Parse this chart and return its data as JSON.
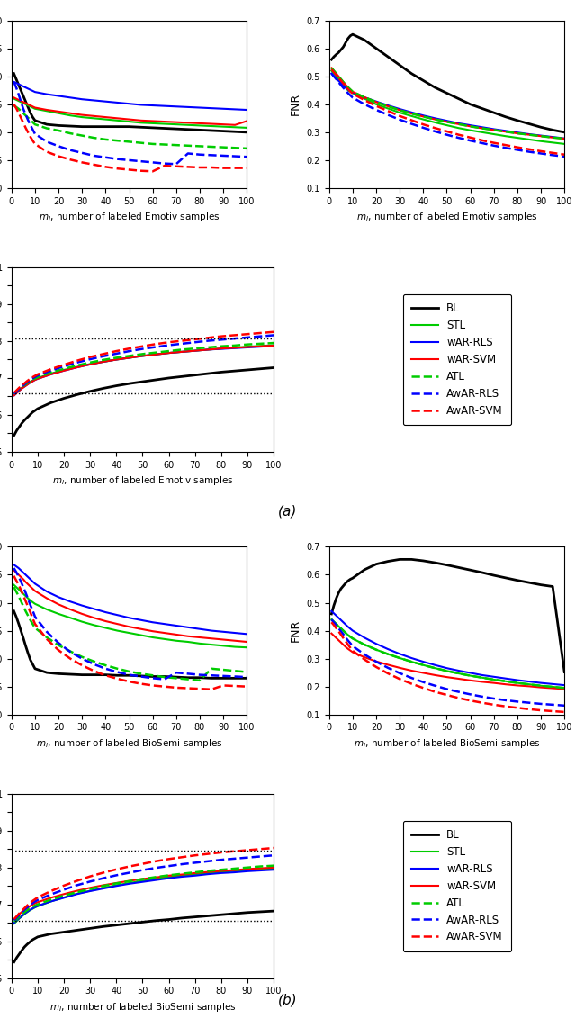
{
  "x": [
    1,
    2,
    3,
    4,
    5,
    6,
    7,
    8,
    9,
    10,
    15,
    20,
    25,
    30,
    35,
    40,
    45,
    50,
    55,
    60,
    65,
    70,
    75,
    80,
    85,
    90,
    95,
    100
  ],
  "a_fpr": {
    "BL": [
      0.205,
      0.195,
      0.185,
      0.175,
      0.165,
      0.155,
      0.145,
      0.135,
      0.127,
      0.121,
      0.114,
      0.112,
      0.111,
      0.11,
      0.11,
      0.11,
      0.11,
      0.11,
      0.109,
      0.108,
      0.107,
      0.106,
      0.105,
      0.104,
      0.103,
      0.102,
      0.101,
      0.1
    ],
    "STL": [
      0.16,
      0.158,
      0.156,
      0.154,
      0.152,
      0.15,
      0.148,
      0.146,
      0.144,
      0.142,
      0.138,
      0.134,
      0.13,
      0.127,
      0.125,
      0.123,
      0.121,
      0.119,
      0.117,
      0.116,
      0.115,
      0.114,
      0.113,
      0.112,
      0.111,
      0.11,
      0.109,
      0.108
    ],
    "wAR_RLS": [
      0.19,
      0.188,
      0.186,
      0.184,
      0.182,
      0.18,
      0.178,
      0.176,
      0.174,
      0.172,
      0.168,
      0.165,
      0.162,
      0.159,
      0.157,
      0.155,
      0.153,
      0.151,
      0.149,
      0.148,
      0.147,
      0.146,
      0.145,
      0.144,
      0.143,
      0.142,
      0.141,
      0.14
    ],
    "wAR_SVM": [
      0.162,
      0.16,
      0.158,
      0.156,
      0.154,
      0.152,
      0.15,
      0.148,
      0.146,
      0.144,
      0.14,
      0.137,
      0.134,
      0.131,
      0.129,
      0.127,
      0.125,
      0.123,
      0.121,
      0.12,
      0.119,
      0.118,
      0.117,
      0.116,
      0.115,
      0.114,
      0.113,
      0.12
    ],
    "ATL": [
      0.148,
      0.145,
      0.142,
      0.138,
      0.134,
      0.13,
      0.126,
      0.122,
      0.118,
      0.114,
      0.107,
      0.103,
      0.098,
      0.094,
      0.09,
      0.087,
      0.085,
      0.083,
      0.081,
      0.079,
      0.078,
      0.077,
      0.076,
      0.075,
      0.074,
      0.073,
      0.072,
      0.071
    ],
    "AwAR_RLS": [
      0.19,
      0.18,
      0.168,
      0.155,
      0.142,
      0.132,
      0.122,
      0.113,
      0.105,
      0.097,
      0.083,
      0.075,
      0.068,
      0.063,
      0.058,
      0.055,
      0.052,
      0.05,
      0.048,
      0.046,
      0.044,
      0.043,
      0.062,
      0.06,
      0.059,
      0.058,
      0.057,
      0.056
    ],
    "AwAR_SVM": [
      0.15,
      0.143,
      0.135,
      0.126,
      0.117,
      0.108,
      0.1,
      0.092,
      0.085,
      0.079,
      0.065,
      0.057,
      0.051,
      0.046,
      0.042,
      0.038,
      0.035,
      0.033,
      0.031,
      0.03,
      0.04,
      0.039,
      0.038,
      0.037,
      0.037,
      0.036,
      0.036,
      0.036
    ]
  },
  "a_fnr": {
    "BL": [
      0.56,
      0.57,
      0.578,
      0.585,
      0.595,
      0.605,
      0.62,
      0.635,
      0.645,
      0.65,
      0.63,
      0.6,
      0.57,
      0.54,
      0.51,
      0.485,
      0.46,
      0.44,
      0.42,
      0.4,
      0.385,
      0.37,
      0.355,
      0.342,
      0.33,
      0.318,
      0.308,
      0.3
    ],
    "STL": [
      0.52,
      0.51,
      0.5,
      0.49,
      0.48,
      0.47,
      0.46,
      0.45,
      0.445,
      0.44,
      0.42,
      0.4,
      0.385,
      0.37,
      0.358,
      0.346,
      0.335,
      0.325,
      0.315,
      0.307,
      0.3,
      0.293,
      0.286,
      0.28,
      0.274,
      0.268,
      0.263,
      0.258
    ],
    "wAR_RLS": [
      0.51,
      0.5,
      0.492,
      0.484,
      0.476,
      0.468,
      0.46,
      0.453,
      0.447,
      0.442,
      0.425,
      0.41,
      0.396,
      0.383,
      0.371,
      0.36,
      0.35,
      0.341,
      0.332,
      0.325,
      0.318,
      0.311,
      0.305,
      0.299,
      0.293,
      0.288,
      0.283,
      0.278
    ],
    "wAR_SVM": [
      0.53,
      0.52,
      0.51,
      0.5,
      0.49,
      0.48,
      0.47,
      0.461,
      0.453,
      0.445,
      0.425,
      0.408,
      0.393,
      0.379,
      0.367,
      0.356,
      0.346,
      0.337,
      0.329,
      0.321,
      0.314,
      0.308,
      0.302,
      0.296,
      0.291,
      0.286,
      0.281,
      0.277
    ],
    "ATL": [
      0.53,
      0.52,
      0.51,
      0.5,
      0.49,
      0.48,
      0.47,
      0.461,
      0.453,
      0.445,
      0.425,
      0.408,
      0.393,
      0.379,
      0.367,
      0.356,
      0.346,
      0.337,
      0.329,
      0.321,
      0.314,
      0.308,
      0.302,
      0.296,
      0.291,
      0.286,
      0.281,
      0.277
    ],
    "AwAR_RLS": [
      0.51,
      0.5,
      0.49,
      0.479,
      0.469,
      0.459,
      0.45,
      0.44,
      0.432,
      0.424,
      0.4,
      0.38,
      0.362,
      0.345,
      0.33,
      0.316,
      0.303,
      0.291,
      0.28,
      0.27,
      0.261,
      0.252,
      0.244,
      0.237,
      0.23,
      0.224,
      0.218,
      0.213
    ],
    "AwAR_SVM": [
      0.525,
      0.515,
      0.505,
      0.495,
      0.485,
      0.475,
      0.465,
      0.455,
      0.446,
      0.438,
      0.415,
      0.394,
      0.376,
      0.358,
      0.343,
      0.328,
      0.315,
      0.303,
      0.291,
      0.281,
      0.271,
      0.262,
      0.254,
      0.246,
      0.239,
      0.232,
      0.226,
      0.22
    ]
  },
  "a_bca": {
    "BL": [
      0.545,
      0.558,
      0.568,
      0.578,
      0.586,
      0.593,
      0.6,
      0.607,
      0.612,
      0.617,
      0.633,
      0.645,
      0.655,
      0.664,
      0.672,
      0.679,
      0.685,
      0.69,
      0.695,
      0.7,
      0.704,
      0.708,
      0.712,
      0.716,
      0.719,
      0.722,
      0.725,
      0.728
    ],
    "STL": [
      0.655,
      0.662,
      0.668,
      0.674,
      0.679,
      0.684,
      0.689,
      0.693,
      0.697,
      0.7,
      0.712,
      0.722,
      0.73,
      0.738,
      0.744,
      0.75,
      0.755,
      0.76,
      0.764,
      0.768,
      0.771,
      0.774,
      0.777,
      0.78,
      0.782,
      0.785,
      0.787,
      0.789
    ],
    "wAR_RLS": [
      0.653,
      0.66,
      0.666,
      0.672,
      0.677,
      0.682,
      0.687,
      0.691,
      0.695,
      0.698,
      0.71,
      0.72,
      0.729,
      0.737,
      0.744,
      0.75,
      0.755,
      0.76,
      0.764,
      0.768,
      0.771,
      0.774,
      0.777,
      0.779,
      0.781,
      0.783,
      0.785,
      0.787
    ],
    "wAR_SVM": [
      0.653,
      0.66,
      0.666,
      0.672,
      0.677,
      0.682,
      0.687,
      0.691,
      0.695,
      0.698,
      0.71,
      0.72,
      0.729,
      0.737,
      0.744,
      0.75,
      0.755,
      0.76,
      0.764,
      0.768,
      0.771,
      0.774,
      0.777,
      0.78,
      0.782,
      0.784,
      0.786,
      0.788
    ],
    "ATL": [
      0.657,
      0.664,
      0.67,
      0.676,
      0.681,
      0.686,
      0.691,
      0.695,
      0.699,
      0.702,
      0.715,
      0.725,
      0.734,
      0.742,
      0.749,
      0.755,
      0.76,
      0.765,
      0.769,
      0.773,
      0.777,
      0.78,
      0.783,
      0.786,
      0.788,
      0.791,
      0.793,
      0.795
    ],
    "AwAR_RLS": [
      0.657,
      0.664,
      0.671,
      0.677,
      0.683,
      0.689,
      0.694,
      0.699,
      0.703,
      0.707,
      0.72,
      0.732,
      0.742,
      0.751,
      0.759,
      0.766,
      0.773,
      0.779,
      0.784,
      0.789,
      0.793,
      0.797,
      0.801,
      0.804,
      0.807,
      0.81,
      0.813,
      0.816
    ],
    "AwAR_SVM": [
      0.66,
      0.667,
      0.674,
      0.68,
      0.686,
      0.692,
      0.697,
      0.702,
      0.706,
      0.71,
      0.724,
      0.736,
      0.747,
      0.757,
      0.765,
      0.773,
      0.78,
      0.786,
      0.792,
      0.797,
      0.801,
      0.805,
      0.809,
      0.813,
      0.816,
      0.819,
      0.822,
      0.825
    ]
  },
  "a_bca_hline1": 0.808,
  "a_bca_hline2": 0.658,
  "b_fpr": {
    "BL": [
      0.185,
      0.175,
      0.163,
      0.15,
      0.137,
      0.123,
      0.11,
      0.098,
      0.09,
      0.082,
      0.075,
      0.073,
      0.072,
      0.071,
      0.071,
      0.071,
      0.07,
      0.07,
      0.069,
      0.068,
      0.068,
      0.067,
      0.066,
      0.066,
      0.065,
      0.065,
      0.065,
      0.065
    ],
    "STL": [
      0.232,
      0.228,
      0.224,
      0.22,
      0.216,
      0.212,
      0.208,
      0.204,
      0.201,
      0.198,
      0.188,
      0.18,
      0.173,
      0.166,
      0.16,
      0.155,
      0.15,
      0.146,
      0.142,
      0.138,
      0.135,
      0.132,
      0.13,
      0.127,
      0.125,
      0.123,
      0.121,
      0.12
    ],
    "wAR_RLS": [
      0.268,
      0.265,
      0.262,
      0.258,
      0.254,
      0.25,
      0.246,
      0.242,
      0.238,
      0.234,
      0.22,
      0.21,
      0.202,
      0.195,
      0.189,
      0.183,
      0.178,
      0.173,
      0.169,
      0.165,
      0.162,
      0.159,
      0.156,
      0.153,
      0.15,
      0.148,
      0.146,
      0.144
    ],
    "wAR_SVM": [
      0.258,
      0.254,
      0.25,
      0.246,
      0.242,
      0.237,
      0.233,
      0.229,
      0.225,
      0.221,
      0.208,
      0.197,
      0.188,
      0.18,
      0.173,
      0.167,
      0.162,
      0.157,
      0.153,
      0.149,
      0.146,
      0.143,
      0.14,
      0.138,
      0.136,
      0.134,
      0.132,
      0.13
    ],
    "ATL": [
      0.228,
      0.22,
      0.212,
      0.203,
      0.194,
      0.185,
      0.177,
      0.169,
      0.162,
      0.155,
      0.138,
      0.124,
      0.113,
      0.103,
      0.095,
      0.088,
      0.082,
      0.077,
      0.073,
      0.07,
      0.067,
      0.065,
      0.063,
      0.061,
      0.082,
      0.08,
      0.078,
      0.076
    ],
    "AwAR_RLS": [
      0.262,
      0.255,
      0.247,
      0.238,
      0.228,
      0.218,
      0.207,
      0.196,
      0.186,
      0.175,
      0.148,
      0.128,
      0.112,
      0.1,
      0.09,
      0.082,
      0.076,
      0.071,
      0.068,
      0.065,
      0.063,
      0.075,
      0.073,
      0.071,
      0.07,
      0.069,
      0.068,
      0.067
    ],
    "AwAR_SVM": [
      0.248,
      0.24,
      0.232,
      0.223,
      0.213,
      0.203,
      0.193,
      0.183,
      0.172,
      0.162,
      0.135,
      0.115,
      0.1,
      0.088,
      0.078,
      0.07,
      0.064,
      0.059,
      0.055,
      0.052,
      0.05,
      0.048,
      0.047,
      0.046,
      0.045,
      0.052,
      0.051,
      0.05
    ]
  },
  "b_fnr": {
    "BL": [
      0.46,
      0.49,
      0.515,
      0.535,
      0.55,
      0.56,
      0.57,
      0.578,
      0.584,
      0.588,
      0.618,
      0.638,
      0.648,
      0.655,
      0.655,
      0.65,
      0.643,
      0.635,
      0.626,
      0.617,
      0.608,
      0.598,
      0.589,
      0.58,
      0.572,
      0.564,
      0.558,
      0.252
    ],
    "STL": [
      0.44,
      0.432,
      0.424,
      0.416,
      0.408,
      0.4,
      0.392,
      0.385,
      0.378,
      0.372,
      0.35,
      0.332,
      0.316,
      0.302,
      0.289,
      0.277,
      0.266,
      0.256,
      0.247,
      0.239,
      0.232,
      0.225,
      0.219,
      0.213,
      0.208,
      0.203,
      0.199,
      0.195
    ],
    "wAR_RLS": [
      0.47,
      0.462,
      0.454,
      0.446,
      0.438,
      0.43,
      0.422,
      0.414,
      0.407,
      0.4,
      0.375,
      0.353,
      0.334,
      0.317,
      0.302,
      0.289,
      0.277,
      0.266,
      0.257,
      0.249,
      0.241,
      0.235,
      0.229,
      0.223,
      0.218,
      0.213,
      0.209,
      0.205
    ],
    "wAR_SVM": [
      0.39,
      0.382,
      0.374,
      0.366,
      0.358,
      0.35,
      0.342,
      0.335,
      0.329,
      0.323,
      0.305,
      0.29,
      0.278,
      0.267,
      0.257,
      0.249,
      0.241,
      0.234,
      0.228,
      0.222,
      0.217,
      0.213,
      0.208,
      0.204,
      0.201,
      0.197,
      0.194,
      0.191
    ],
    "ATL": [
      0.44,
      0.432,
      0.424,
      0.416,
      0.408,
      0.4,
      0.392,
      0.385,
      0.378,
      0.372,
      0.35,
      0.332,
      0.316,
      0.302,
      0.289,
      0.277,
      0.266,
      0.256,
      0.247,
      0.239,
      0.232,
      0.225,
      0.219,
      0.213,
      0.208,
      0.203,
      0.199,
      0.195
    ],
    "AwAR_RLS": [
      0.44,
      0.43,
      0.42,
      0.409,
      0.398,
      0.387,
      0.376,
      0.365,
      0.355,
      0.345,
      0.315,
      0.289,
      0.267,
      0.248,
      0.231,
      0.216,
      0.203,
      0.191,
      0.181,
      0.172,
      0.164,
      0.157,
      0.151,
      0.146,
      0.142,
      0.138,
      0.135,
      0.132
    ],
    "AwAR_SVM": [
      0.43,
      0.42,
      0.409,
      0.398,
      0.386,
      0.374,
      0.362,
      0.35,
      0.339,
      0.328,
      0.297,
      0.27,
      0.247,
      0.227,
      0.21,
      0.195,
      0.181,
      0.17,
      0.159,
      0.15,
      0.142,
      0.135,
      0.129,
      0.124,
      0.119,
      0.115,
      0.112,
      0.109
    ]
  },
  "b_bca": {
    "BL": [
      0.544,
      0.556,
      0.566,
      0.576,
      0.585,
      0.592,
      0.598,
      0.604,
      0.608,
      0.612,
      0.62,
      0.625,
      0.63,
      0.635,
      0.64,
      0.644,
      0.648,
      0.652,
      0.656,
      0.659,
      0.663,
      0.666,
      0.669,
      0.672,
      0.675,
      0.678,
      0.68,
      0.682
    ],
    "STL": [
      0.648,
      0.655,
      0.662,
      0.668,
      0.674,
      0.679,
      0.684,
      0.688,
      0.692,
      0.695,
      0.708,
      0.719,
      0.729,
      0.737,
      0.745,
      0.752,
      0.758,
      0.764,
      0.769,
      0.774,
      0.778,
      0.782,
      0.785,
      0.788,
      0.791,
      0.793,
      0.795,
      0.797
    ],
    "wAR_RLS": [
      0.65,
      0.657,
      0.663,
      0.669,
      0.675,
      0.68,
      0.685,
      0.689,
      0.693,
      0.696,
      0.708,
      0.718,
      0.728,
      0.736,
      0.743,
      0.75,
      0.756,
      0.761,
      0.766,
      0.771,
      0.775,
      0.778,
      0.782,
      0.785,
      0.787,
      0.79,
      0.792,
      0.794
    ],
    "wAR_SVM": [
      0.66,
      0.667,
      0.674,
      0.68,
      0.685,
      0.69,
      0.695,
      0.699,
      0.703,
      0.706,
      0.718,
      0.728,
      0.737,
      0.745,
      0.752,
      0.758,
      0.764,
      0.769,
      0.773,
      0.778,
      0.781,
      0.785,
      0.788,
      0.791,
      0.793,
      0.796,
      0.798,
      0.8
    ],
    "ATL": [
      0.653,
      0.66,
      0.667,
      0.673,
      0.679,
      0.684,
      0.689,
      0.693,
      0.697,
      0.7,
      0.713,
      0.724,
      0.733,
      0.742,
      0.75,
      0.757,
      0.763,
      0.769,
      0.774,
      0.779,
      0.783,
      0.787,
      0.791,
      0.794,
      0.797,
      0.8,
      0.803,
      0.805
    ],
    "AwAR_RLS": [
      0.657,
      0.665,
      0.672,
      0.679,
      0.686,
      0.692,
      0.698,
      0.703,
      0.708,
      0.712,
      0.727,
      0.74,
      0.752,
      0.762,
      0.771,
      0.779,
      0.786,
      0.793,
      0.799,
      0.804,
      0.809,
      0.813,
      0.817,
      0.821,
      0.824,
      0.827,
      0.83,
      0.833
    ],
    "AwAR_SVM": [
      0.66,
      0.668,
      0.676,
      0.683,
      0.69,
      0.697,
      0.703,
      0.709,
      0.714,
      0.719,
      0.736,
      0.751,
      0.764,
      0.776,
      0.786,
      0.795,
      0.803,
      0.81,
      0.817,
      0.823,
      0.828,
      0.833,
      0.837,
      0.841,
      0.844,
      0.847,
      0.85,
      0.853
    ]
  },
  "b_bca_hline1": 0.845,
  "b_bca_hline2": 0.655,
  "colors": {
    "BL": "#000000",
    "STL": "#00cc00",
    "wAR_RLS": "#0000ff",
    "wAR_SVM": "#ff0000",
    "ATL": "#00cc00",
    "AwAR_RLS": "#0000ff",
    "AwAR_SVM": "#ff0000"
  },
  "legend_labels": [
    "BL",
    "STL",
    "wAR-RLS",
    "wAR-SVM",
    "ATL",
    "AwAR-RLS",
    "AwAR-SVM"
  ]
}
